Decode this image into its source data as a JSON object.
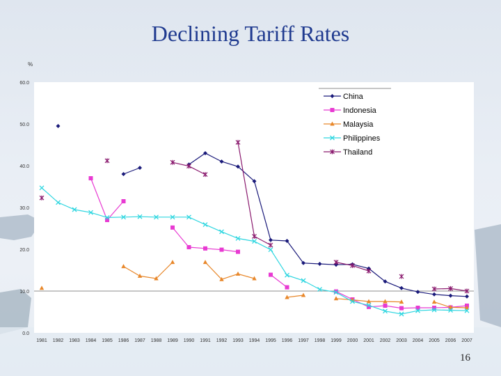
{
  "slide": {
    "title": "Declining Tariff Rates",
    "page_number": "16"
  },
  "colors": {
    "China": "#1a1a7a",
    "Indonesia": "#e83ad2",
    "Malaysia": "#e8872a",
    "Philippines": "#2ed6e0",
    "Thailand": "#8a1a6e",
    "title": "#1f3a8f"
  },
  "chart_data": {
    "type": "line",
    "ylabel": "%",
    "ylim": [
      0,
      60
    ],
    "yticks": [
      "0.0",
      "10.0",
      "20.0",
      "30.0",
      "40.0",
      "50.0",
      "60.0"
    ],
    "categories": [
      "1981",
      "1982",
      "1983",
      "1984",
      "1985",
      "1986",
      "1987",
      "1988",
      "1989",
      "1990",
      "1991",
      "1992",
      "1993",
      "1994",
      "1995",
      "1996",
      "1997",
      "1998",
      "1999",
      "2000",
      "2001",
      "2002",
      "2003",
      "2004",
      "2005",
      "2006",
      "2007"
    ],
    "category_labels": [
      "1981",
      "1982",
      "1983",
      "1984",
      "1985",
      "1986",
      "1987",
      "1988",
      "1989",
      "1990",
      "1991",
      "1992",
      "1993",
      "1994",
      "1995",
      "1996",
      "1997",
      "1998",
      "1999",
      "2000",
      "2001",
      "2002",
      "2003",
      "2004",
      "2005",
      "2006",
      "2007"
    ],
    "legend_position": "top-right",
    "series": [
      {
        "name": "China",
        "marker": "diamond",
        "values": [
          null,
          49.5,
          null,
          null,
          null,
          38.0,
          39.5,
          null,
          null,
          40.3,
          43.0,
          41.0,
          39.8,
          36.3,
          22.2,
          22.0,
          16.7,
          16.5,
          16.3,
          16.4,
          15.4,
          12.3,
          10.7,
          9.8,
          9.2,
          8.9,
          8.7
        ]
      },
      {
        "name": "Indonesia",
        "marker": "square",
        "values": [
          null,
          null,
          null,
          37.0,
          27.0,
          31.5,
          null,
          null,
          25.2,
          20.5,
          20.2,
          19.9,
          19.4,
          null,
          13.9,
          10.9,
          null,
          null,
          9.9,
          8.0,
          6.2,
          6.5,
          5.9,
          6.0,
          6.0,
          6.1,
          6.5
        ]
      },
      {
        "name": "Malaysia",
        "marker": "triangle",
        "values": [
          10.7,
          null,
          null,
          null,
          null,
          15.9,
          13.6,
          13.0,
          16.9,
          null,
          16.9,
          12.8,
          14.1,
          13.0,
          null,
          8.5,
          9.0,
          null,
          8.2,
          7.9,
          7.5,
          7.5,
          7.4,
          null,
          7.4,
          6.1,
          6.0
        ]
      },
      {
        "name": "Philippines",
        "marker": "x",
        "values": [
          34.7,
          31.2,
          29.5,
          28.8,
          27.6,
          27.7,
          27.8,
          27.7,
          27.7,
          27.7,
          25.9,
          24.2,
          22.6,
          21.9,
          19.9,
          13.8,
          12.5,
          10.4,
          9.7,
          7.5,
          6.6,
          5.2,
          4.5,
          5.3,
          5.5,
          5.4,
          5.3
        ]
      },
      {
        "name": "Thailand",
        "marker": "asterisk",
        "values": [
          32.3,
          null,
          null,
          null,
          41.2,
          null,
          null,
          null,
          40.8,
          39.9,
          37.9,
          null,
          45.6,
          23.1,
          21.0,
          null,
          null,
          null,
          16.9,
          16.1,
          14.8,
          null,
          13.5,
          null,
          10.5,
          10.6,
          10.0
        ]
      }
    ]
  }
}
